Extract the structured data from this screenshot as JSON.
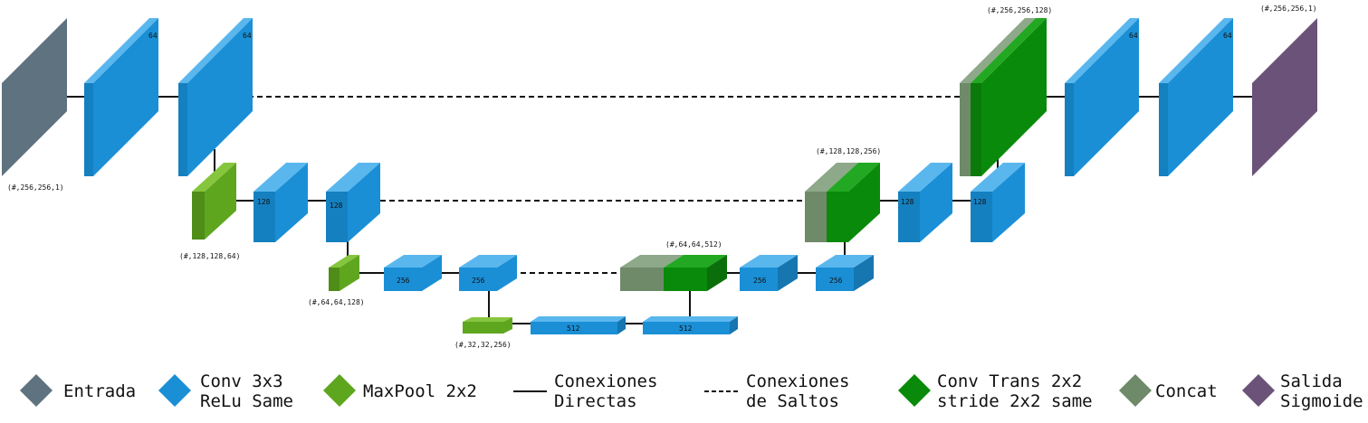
{
  "colors": {
    "input": "#5e7280",
    "conv": "#1a8fd6",
    "maxpool": "#5fa61f",
    "convtrans": "#0a8a0a",
    "concat": "#6e8a69",
    "output": "#6a5278"
  },
  "blocks": {
    "input": {
      "dim": "(#,256,256,1)"
    },
    "c1a": {
      "label": "64"
    },
    "c1b": {
      "label": "64"
    },
    "pool1": {
      "dim": "(#,128,128,64)"
    },
    "c2a": {
      "label": "128"
    },
    "c2b": {
      "label": "128"
    },
    "pool2": {
      "dim": "(#,64,64,128)"
    },
    "c3a": {
      "label": "256"
    },
    "c3b": {
      "label": "256"
    },
    "pool3": {
      "dim": "(#,32,32,256)"
    },
    "c4a": {
      "label": "512"
    },
    "c4b": {
      "label": "512"
    },
    "up3": {
      "dim": "(#,64,64,512)"
    },
    "c5a": {
      "label": "256"
    },
    "c5b": {
      "label": "256"
    },
    "up2": {
      "dim": "(#,128,128,256)"
    },
    "c6a": {
      "label": "128"
    },
    "c6b": {
      "label": "128"
    },
    "up1": {
      "dim": "(#,256,256,128)"
    },
    "c7a": {
      "label": "64"
    },
    "c7b": {
      "label": "64"
    },
    "output": {
      "dim": "(#,256,256,1)"
    }
  },
  "legend": {
    "input": {
      "icon": "diamond",
      "line1": "Entrada",
      "line2": ""
    },
    "conv": {
      "icon": "diamond",
      "line1": "Conv 3x3",
      "line2": "ReLu Same"
    },
    "maxpool": {
      "icon": "diamond",
      "line1": "MaxPool 2x2",
      "line2": ""
    },
    "direct": {
      "icon": "solid-line",
      "line1": "Conexiones",
      "line2": "Directas"
    },
    "skip": {
      "icon": "dashed-line",
      "line1": "Conexiones",
      "line2": "de Saltos"
    },
    "convtrans": {
      "icon": "diamond",
      "line1": "Conv Trans 2x2",
      "line2": "stride 2x2 same"
    },
    "concat": {
      "icon": "diamond",
      "line1": "Concat",
      "line2": ""
    },
    "output": {
      "icon": "diamond",
      "line1": "Salida",
      "line2": "Sigmoide"
    }
  }
}
